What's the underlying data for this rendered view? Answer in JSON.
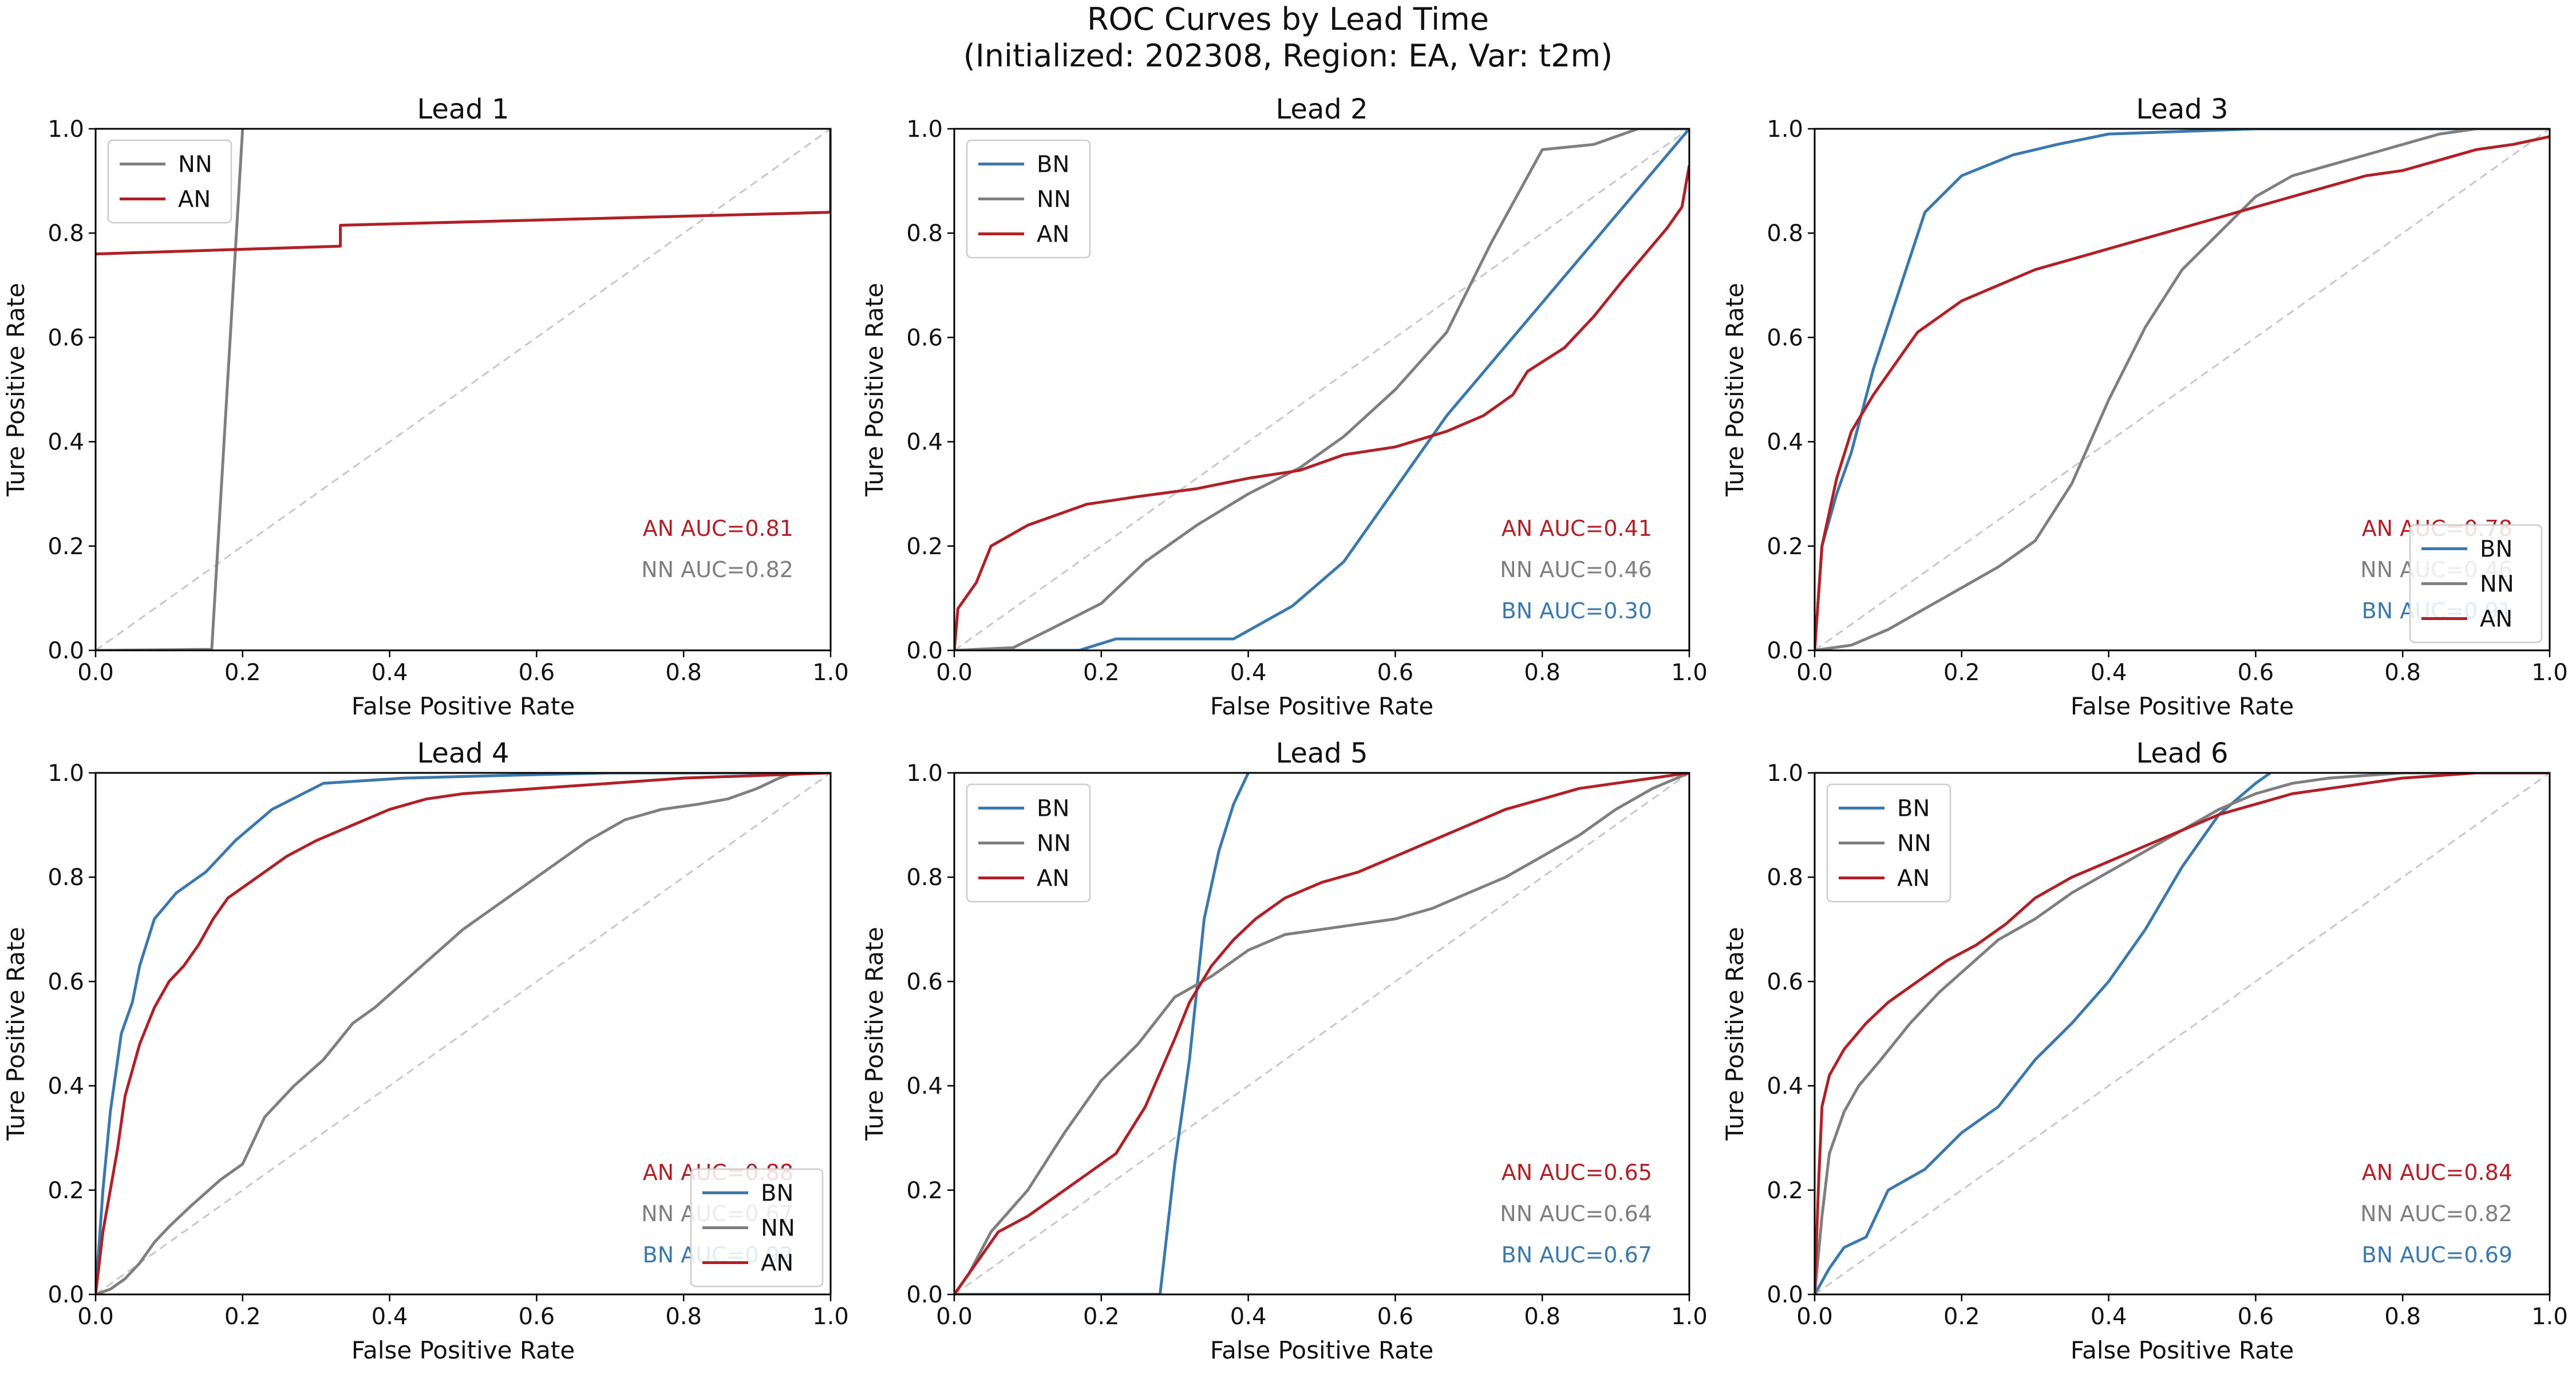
{
  "figure": {
    "title_line1": "ROC Curves by Lead Time",
    "title_line2": "(Initialized: 202308, Region: EA, Var: t2m)"
  },
  "colors": {
    "BN": "#3a78ad",
    "NN": "#7f7f7f",
    "AN": "#b02026",
    "diagonal": "#c8c8c8"
  },
  "chart_data": [
    {
      "type": "line",
      "title": "Lead 1",
      "xlabel": "False Positive Rate",
      "ylabel": "Ture Positive Rate",
      "xlim": [
        0,
        1
      ],
      "ylim": [
        0,
        1
      ],
      "xticks": [
        "0.0",
        "0.2",
        "0.4",
        "0.6",
        "0.8",
        "1.0"
      ],
      "yticks": [
        "0.0",
        "0.2",
        "0.4",
        "0.6",
        "0.8",
        "1.0"
      ],
      "legend": "upper-left",
      "series": [
        {
          "name": "NN",
          "x": [
            0,
            0.158,
            0.2
          ],
          "y": [
            0,
            0.002,
            1.0
          ]
        },
        {
          "name": "AN",
          "x": [
            0,
            0.333,
            0.333,
            1.0,
            1.0
          ],
          "y": [
            0.76,
            0.775,
            0.815,
            0.84,
            1.0
          ]
        }
      ],
      "annotations": [
        {
          "series": "AN",
          "text": "AN AUC=0.81"
        },
        {
          "series": "NN",
          "text": "NN AUC=0.82"
        }
      ]
    },
    {
      "type": "line",
      "title": "Lead 2",
      "xlabel": "False Positive Rate",
      "ylabel": "Ture Positive Rate",
      "xlim": [
        0,
        1
      ],
      "ylim": [
        0,
        1
      ],
      "xticks": [
        "0.0",
        "0.2",
        "0.4",
        "0.6",
        "0.8",
        "1.0"
      ],
      "yticks": [
        "0.0",
        "0.2",
        "0.4",
        "0.6",
        "0.8",
        "1.0"
      ],
      "legend": "upper-left",
      "series": [
        {
          "name": "BN",
          "x": [
            0,
            0.17,
            0.22,
            0.38,
            0.46,
            0.53,
            0.6,
            0.67,
            1.0
          ],
          "y": [
            0,
            0,
            0.022,
            0.022,
            0.085,
            0.17,
            0.31,
            0.45,
            1.0
          ]
        },
        {
          "name": "NN",
          "x": [
            0,
            0.08,
            0.13,
            0.2,
            0.26,
            0.33,
            0.4,
            0.47,
            0.53,
            0.6,
            0.67,
            0.73,
            0.8,
            0.87,
            0.93,
            1.0
          ],
          "y": [
            0,
            0.005,
            0.04,
            0.09,
            0.17,
            0.24,
            0.3,
            0.35,
            0.41,
            0.5,
            0.61,
            0.78,
            0.96,
            0.97,
            1.0,
            1.0
          ]
        },
        {
          "name": "AN",
          "x": [
            0,
            0.005,
            0.03,
            0.05,
            0.1,
            0.18,
            0.25,
            0.33,
            0.4,
            0.47,
            0.53,
            0.6,
            0.67,
            0.72,
            0.76,
            0.78,
            0.83,
            0.87,
            0.91,
            0.94,
            0.97,
            0.99,
            1.0
          ],
          "y": [
            0,
            0.08,
            0.13,
            0.2,
            0.24,
            0.28,
            0.295,
            0.31,
            0.33,
            0.345,
            0.375,
            0.39,
            0.42,
            0.45,
            0.49,
            0.535,
            0.58,
            0.64,
            0.71,
            0.76,
            0.81,
            0.85,
            0.93
          ]
        }
      ],
      "annotations": [
        {
          "series": "AN",
          "text": "AN AUC=0.41"
        },
        {
          "series": "NN",
          "text": "NN AUC=0.46"
        },
        {
          "series": "BN",
          "text": "BN AUC=0.30"
        }
      ]
    },
    {
      "type": "line",
      "title": "Lead 3",
      "xlabel": "False Positive Rate",
      "ylabel": "Ture Positive Rate",
      "xlim": [
        0,
        1
      ],
      "ylim": [
        0,
        1
      ],
      "xticks": [
        "0.0",
        "0.2",
        "0.4",
        "0.6",
        "0.8",
        "1.0"
      ],
      "yticks": [
        "0.0",
        "0.2",
        "0.4",
        "0.6",
        "0.8",
        "1.0"
      ],
      "legend": "lower-right",
      "series": [
        {
          "name": "BN",
          "x": [
            0,
            0.01,
            0.03,
            0.05,
            0.08,
            0.15,
            0.2,
            0.27,
            0.33,
            0.4,
            0.6,
            1.0
          ],
          "y": [
            0,
            0.2,
            0.3,
            0.38,
            0.54,
            0.84,
            0.91,
            0.95,
            0.97,
            0.99,
            1.0,
            1.0
          ]
        },
        {
          "name": "NN",
          "x": [
            0,
            0.05,
            0.1,
            0.15,
            0.2,
            0.25,
            0.3,
            0.35,
            0.4,
            0.45,
            0.5,
            0.55,
            0.6,
            0.65,
            0.7,
            0.75,
            0.8,
            0.85,
            0.9,
            1.0
          ],
          "y": [
            0,
            0.01,
            0.04,
            0.08,
            0.12,
            0.16,
            0.21,
            0.32,
            0.48,
            0.62,
            0.73,
            0.8,
            0.87,
            0.91,
            0.93,
            0.95,
            0.97,
            0.99,
            1.0,
            1.0
          ]
        },
        {
          "name": "AN",
          "x": [
            0,
            0.01,
            0.03,
            0.05,
            0.08,
            0.11,
            0.14,
            0.17,
            0.2,
            0.25,
            0.3,
            0.35,
            0.4,
            0.45,
            0.5,
            0.55,
            0.6,
            0.65,
            0.7,
            0.75,
            0.8,
            0.85,
            0.9,
            0.95,
            1.0
          ],
          "y": [
            0,
            0.2,
            0.33,
            0.42,
            0.49,
            0.55,
            0.61,
            0.64,
            0.67,
            0.7,
            0.73,
            0.75,
            0.77,
            0.79,
            0.81,
            0.83,
            0.85,
            0.87,
            0.89,
            0.91,
            0.92,
            0.94,
            0.96,
            0.97,
            0.985
          ]
        }
      ],
      "annotations": [
        {
          "series": "AN",
          "text": "AN AUC=0.78"
        },
        {
          "series": "NN",
          "text": "NN AUC=0.46"
        },
        {
          "series": "BN",
          "text": "BN AUC=0.91"
        }
      ]
    },
    {
      "type": "line",
      "title": "Lead 4",
      "xlabel": "False Positive Rate",
      "ylabel": "Ture Positive Rate",
      "xlim": [
        0,
        1
      ],
      "ylim": [
        0,
        1
      ],
      "xticks": [
        "0.0",
        "0.2",
        "0.4",
        "0.6",
        "0.8",
        "1.0"
      ],
      "yticks": [
        "0.0",
        "0.2",
        "0.4",
        "0.6",
        "0.8",
        "1.0"
      ],
      "legend": "lower-right",
      "series": [
        {
          "name": "BN",
          "x": [
            0,
            0.01,
            0.02,
            0.035,
            0.05,
            0.06,
            0.08,
            0.11,
            0.15,
            0.19,
            0.24,
            0.31,
            0.42,
            0.55,
            0.7,
            0.85,
            1.0
          ],
          "y": [
            0,
            0.2,
            0.35,
            0.5,
            0.56,
            0.63,
            0.72,
            0.77,
            0.81,
            0.87,
            0.93,
            0.98,
            0.99,
            0.995,
            1.0,
            1.0,
            1.0
          ]
        },
        {
          "name": "NN",
          "x": [
            0,
            0.02,
            0.04,
            0.06,
            0.08,
            0.1,
            0.13,
            0.17,
            0.2,
            0.23,
            0.27,
            0.31,
            0.35,
            0.38,
            0.42,
            0.46,
            0.5,
            0.53,
            0.57,
            0.62,
            0.67,
            0.72,
            0.77,
            0.82,
            0.86,
            0.9,
            0.93,
            0.95,
            1.0
          ],
          "y": [
            0,
            0.01,
            0.03,
            0.06,
            0.1,
            0.13,
            0.17,
            0.22,
            0.25,
            0.34,
            0.4,
            0.45,
            0.52,
            0.55,
            0.6,
            0.65,
            0.7,
            0.73,
            0.77,
            0.82,
            0.87,
            0.91,
            0.93,
            0.94,
            0.95,
            0.97,
            0.99,
            1.0,
            1.0
          ]
        },
        {
          "name": "AN",
          "x": [
            0,
            0.01,
            0.02,
            0.03,
            0.04,
            0.06,
            0.08,
            0.1,
            0.12,
            0.14,
            0.16,
            0.18,
            0.22,
            0.26,
            0.3,
            0.35,
            0.4,
            0.45,
            0.5,
            0.6,
            0.7,
            0.8,
            0.9,
            1.0
          ],
          "y": [
            0,
            0.12,
            0.2,
            0.28,
            0.38,
            0.48,
            0.55,
            0.6,
            0.63,
            0.67,
            0.72,
            0.76,
            0.8,
            0.84,
            0.87,
            0.9,
            0.93,
            0.95,
            0.96,
            0.97,
            0.98,
            0.99,
            0.995,
            1.0
          ]
        }
      ],
      "annotations": [
        {
          "series": "AN",
          "text": "AN AUC=0.88"
        },
        {
          "series": "NN",
          "text": "NN AUC=0.67"
        },
        {
          "series": "BN",
          "text": "BN AUC=0.92"
        }
      ]
    },
    {
      "type": "line",
      "title": "Lead 5",
      "xlabel": "False Positive Rate",
      "ylabel": "Ture Positive Rate",
      "xlim": [
        0,
        1
      ],
      "ylim": [
        0,
        1
      ],
      "xticks": [
        "0.0",
        "0.2",
        "0.4",
        "0.6",
        "0.8",
        "1.0"
      ],
      "yticks": [
        "0.0",
        "0.2",
        "0.4",
        "0.6",
        "0.8",
        "1.0"
      ],
      "legend": "upper-left",
      "series": [
        {
          "name": "BN",
          "x": [
            0,
            0.28,
            0.3,
            0.32,
            0.34,
            0.36,
            0.38,
            0.4
          ],
          "y": [
            0,
            0,
            0.25,
            0.45,
            0.72,
            0.85,
            0.94,
            1.0
          ]
        },
        {
          "name": "NN",
          "x": [
            0,
            0.02,
            0.05,
            0.1,
            0.15,
            0.2,
            0.25,
            0.3,
            0.35,
            0.4,
            0.45,
            0.5,
            0.55,
            0.6,
            0.65,
            0.7,
            0.75,
            0.8,
            0.85,
            0.9,
            0.95,
            1.0
          ],
          "y": [
            0,
            0.04,
            0.12,
            0.2,
            0.31,
            0.41,
            0.48,
            0.57,
            0.61,
            0.66,
            0.69,
            0.7,
            0.71,
            0.72,
            0.74,
            0.77,
            0.8,
            0.84,
            0.88,
            0.93,
            0.97,
            1.0
          ]
        },
        {
          "name": "AN",
          "x": [
            0,
            0.03,
            0.06,
            0.1,
            0.14,
            0.18,
            0.22,
            0.26,
            0.3,
            0.32,
            0.35,
            0.38,
            0.41,
            0.45,
            0.5,
            0.55,
            0.6,
            0.65,
            0.7,
            0.75,
            0.8,
            0.85,
            0.9,
            0.95,
            1.0
          ],
          "y": [
            0,
            0.06,
            0.12,
            0.15,
            0.19,
            0.23,
            0.27,
            0.36,
            0.49,
            0.56,
            0.63,
            0.68,
            0.72,
            0.76,
            0.79,
            0.81,
            0.84,
            0.87,
            0.9,
            0.93,
            0.95,
            0.97,
            0.98,
            0.99,
            1.0
          ]
        }
      ],
      "annotations": [
        {
          "series": "AN",
          "text": "AN AUC=0.65"
        },
        {
          "series": "NN",
          "text": "NN AUC=0.64"
        },
        {
          "series": "BN",
          "text": "BN AUC=0.67"
        }
      ]
    },
    {
      "type": "line",
      "title": "Lead 6",
      "xlabel": "False Positive Rate",
      "ylabel": "Ture Positive Rate",
      "xlim": [
        0,
        1
      ],
      "ylim": [
        0,
        1
      ],
      "xticks": [
        "0.0",
        "0.2",
        "0.4",
        "0.6",
        "0.8",
        "1.0"
      ],
      "yticks": [
        "0.0",
        "0.2",
        "0.4",
        "0.6",
        "0.8",
        "1.0"
      ],
      "legend": "upper-left",
      "series": [
        {
          "name": "BN",
          "x": [
            0,
            0.02,
            0.04,
            0.07,
            0.1,
            0.15,
            0.2,
            0.25,
            0.3,
            0.35,
            0.4,
            0.45,
            0.5,
            0.55,
            0.6,
            0.62
          ],
          "y": [
            0,
            0.05,
            0.09,
            0.11,
            0.2,
            0.24,
            0.31,
            0.36,
            0.45,
            0.52,
            0.6,
            0.7,
            0.82,
            0.92,
            0.98,
            1.0
          ]
        },
        {
          "name": "NN",
          "x": [
            0,
            0.01,
            0.02,
            0.04,
            0.06,
            0.09,
            0.13,
            0.17,
            0.21,
            0.25,
            0.3,
            0.35,
            0.4,
            0.45,
            0.5,
            0.55,
            0.6,
            0.65,
            0.7,
            0.8,
            1.0
          ],
          "y": [
            0,
            0.15,
            0.27,
            0.35,
            0.4,
            0.45,
            0.52,
            0.58,
            0.63,
            0.68,
            0.72,
            0.77,
            0.81,
            0.85,
            0.89,
            0.93,
            0.96,
            0.98,
            0.99,
            1.0,
            1.0
          ]
        },
        {
          "name": "AN",
          "x": [
            0,
            0.005,
            0.01,
            0.02,
            0.04,
            0.07,
            0.1,
            0.14,
            0.18,
            0.22,
            0.26,
            0.3,
            0.35,
            0.4,
            0.45,
            0.5,
            0.55,
            0.6,
            0.65,
            0.7,
            0.75,
            0.8,
            0.85,
            0.9,
            1.0
          ],
          "y": [
            0,
            0.2,
            0.36,
            0.42,
            0.47,
            0.52,
            0.56,
            0.6,
            0.64,
            0.67,
            0.71,
            0.76,
            0.8,
            0.83,
            0.86,
            0.89,
            0.92,
            0.94,
            0.96,
            0.97,
            0.98,
            0.99,
            0.995,
            1.0,
            1.0
          ]
        }
      ],
      "annotations": [
        {
          "series": "AN",
          "text": "AN AUC=0.84"
        },
        {
          "series": "NN",
          "text": "NN AUC=0.82"
        },
        {
          "series": "BN",
          "text": "BN AUC=0.69"
        }
      ]
    }
  ]
}
